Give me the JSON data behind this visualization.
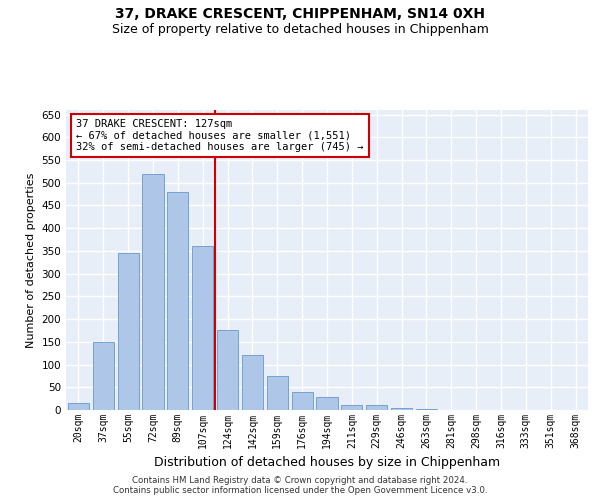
{
  "title": "37, DRAKE CRESCENT, CHIPPENHAM, SN14 0XH",
  "subtitle": "Size of property relative to detached houses in Chippenham",
  "xlabel": "Distribution of detached houses by size in Chippenham",
  "ylabel": "Number of detached properties",
  "categories": [
    "20sqm",
    "37sqm",
    "55sqm",
    "72sqm",
    "89sqm",
    "107sqm",
    "124sqm",
    "142sqm",
    "159sqm",
    "176sqm",
    "194sqm",
    "211sqm",
    "229sqm",
    "246sqm",
    "263sqm",
    "281sqm",
    "298sqm",
    "316sqm",
    "333sqm",
    "351sqm",
    "368sqm"
  ],
  "values": [
    15,
    150,
    345,
    520,
    480,
    360,
    175,
    120,
    75,
    40,
    28,
    12,
    12,
    5,
    3,
    1,
    0,
    0,
    0,
    0,
    0
  ],
  "bar_color": "#aec6e8",
  "bar_edge_color": "#6699cc",
  "property_line_color": "#cc0000",
  "property_line_index": 5.5,
  "annotation_text": "37 DRAKE CRESCENT: 127sqm\n← 67% of detached houses are smaller (1,551)\n32% of semi-detached houses are larger (745) →",
  "annotation_box_color": "#ffffff",
  "annotation_box_edge_color": "#cc0000",
  "ylim": [
    0,
    660
  ],
  "yticks": [
    0,
    50,
    100,
    150,
    200,
    250,
    300,
    350,
    400,
    450,
    500,
    550,
    600,
    650
  ],
  "background_color": "#e8eef8",
  "grid_color": "#ffffff",
  "footer_line1": "Contains HM Land Registry data © Crown copyright and database right 2024.",
  "footer_line2": "Contains public sector information licensed under the Open Government Licence v3.0.",
  "title_fontsize": 10,
  "subtitle_fontsize": 9,
  "annotation_fontsize": 7.5,
  "ylabel_fontsize": 8,
  "xlabel_fontsize": 9
}
